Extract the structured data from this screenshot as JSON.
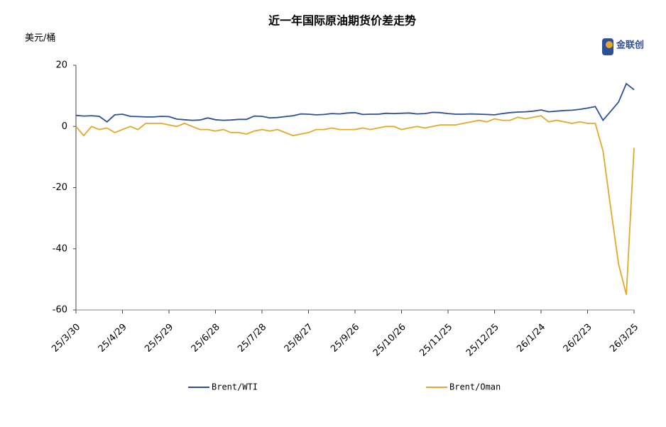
{
  "chart_data": {
    "type": "line",
    "title": "近一年国际原油期货价差走势",
    "y_label": "美元/桶",
    "logo_text": "金联创",
    "categories": [
      "25/3/30",
      null,
      null,
      null,
      null,
      null,
      "25/4/29",
      null,
      null,
      null,
      null,
      null,
      "25/5/29",
      null,
      null,
      null,
      null,
      null,
      "25/6/28",
      null,
      null,
      null,
      null,
      null,
      "25/7/28",
      null,
      null,
      null,
      null,
      null,
      "25/8/27",
      null,
      null,
      null,
      null,
      null,
      "25/9/26",
      null,
      null,
      null,
      null,
      null,
      "25/10/26",
      null,
      null,
      null,
      null,
      null,
      "25/11/25",
      null,
      null,
      null,
      null,
      null,
      "25/12/25",
      null,
      null,
      null,
      null,
      null,
      "26/1/24",
      null,
      null,
      null,
      null,
      null,
      "26/2/23",
      null,
      null,
      null,
      null,
      null,
      "26/3/25"
    ],
    "series": [
      {
        "name": "Brent/WTI",
        "color": "#2e4f96",
        "values": [
          3.6,
          3.4,
          3.5,
          3.3,
          1.5,
          3.8,
          4.0,
          3.3,
          3.2,
          3.1,
          3.1,
          3.3,
          3.2,
          2.4,
          2.2,
          2.0,
          2.1,
          2.8,
          2.2,
          2.0,
          2.1,
          2.3,
          2.3,
          3.4,
          3.3,
          2.8,
          2.9,
          3.2,
          3.5,
          4.1,
          4.0,
          3.8,
          3.9,
          4.2,
          4.1,
          4.4,
          4.5,
          3.9,
          4.0,
          4.0,
          4.3,
          4.2,
          4.3,
          4.4,
          4.1,
          4.2,
          4.6,
          4.5,
          4.2,
          4.0,
          4.0,
          4.1,
          4.0,
          3.9,
          3.8,
          4.2,
          4.5,
          4.7,
          4.8,
          5.0,
          5.4,
          4.8,
          5.0,
          5.2,
          5.3,
          5.6,
          6.0,
          6.5,
          2,
          5,
          8,
          14,
          12
        ]
      },
      {
        "name": "Brent/Oman",
        "color": "#e3a92a",
        "values": [
          0,
          -3,
          0,
          -1,
          -0.5,
          -2,
          -1,
          0,
          -1,
          1,
          1,
          1,
          0.5,
          0,
          1,
          0,
          -1,
          -1,
          -1.5,
          -1,
          -2,
          -2,
          -2.5,
          -1.5,
          -1,
          -1.5,
          -1,
          -2,
          -3,
          -2.5,
          -2,
          -1,
          -1,
          -0.5,
          -1,
          -1,
          -1,
          -0.5,
          -1,
          -0.5,
          0,
          0,
          -1,
          -0.5,
          0,
          -0.5,
          0,
          0.5,
          0.5,
          0.5,
          1,
          1.5,
          2,
          1.5,
          2.5,
          2,
          2,
          3,
          2.5,
          3,
          3.5,
          1.5,
          2,
          1.5,
          1,
          1.5,
          1,
          1,
          -8,
          -27,
          -45,
          -55,
          -7
        ]
      }
    ],
    "ylim": [
      -60,
      20
    ],
    "yticks": [
      20,
      0,
      -20,
      -40,
      -60
    ],
    "grid": false,
    "legend": "bottom"
  }
}
